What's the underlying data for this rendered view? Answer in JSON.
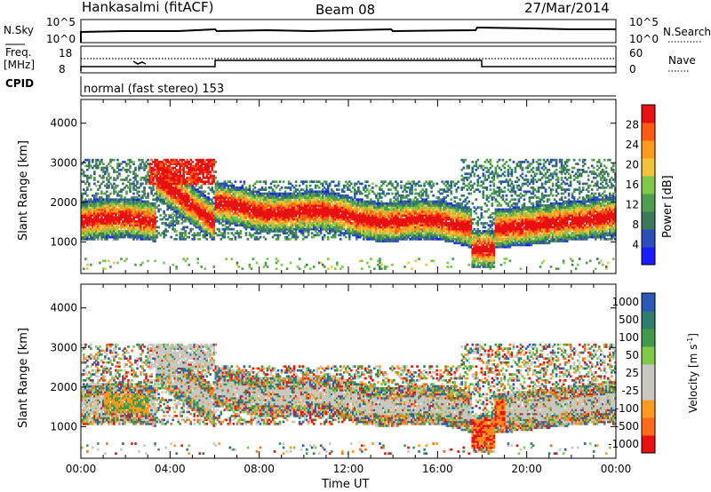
{
  "header": {
    "station": "Hankasalmi (fitACF)",
    "beam": "Beam 08",
    "date": "27/Mar/2014"
  },
  "top_panels": {
    "nsky_label": "N.Sky",
    "nsky_ticks": [
      "10^5",
      "10^0"
    ],
    "nsearch_label": "N.Search",
    "nsearch_ticks": [
      "10^5",
      "10^0"
    ],
    "freq_label_1": "Freq.",
    "freq_label_2": "[MHz]",
    "freq_ticks": [
      "18",
      "8"
    ],
    "nave_label": "Nave",
    "nave_ticks": [
      "60",
      "0"
    ],
    "cpid_label": "CPID",
    "cpid_text": "normal (fast stereo) 153"
  },
  "colors": {
    "power_scale": [
      "#1a1aff",
      "#2b4fb8",
      "#3a7a5a",
      "#4f9e4f",
      "#7ec84a",
      "#f2c23a",
      "#ff9a1f",
      "#ff5a14",
      "#e81010"
    ],
    "velocity_scale": [
      "#2a5ab8",
      "#2e7d6a",
      "#3f9a4a",
      "#7ec84a",
      "#c8c8c0",
      "#c8c8c0",
      "#ff9a1f",
      "#ff6a1a",
      "#e81010"
    ]
  },
  "chart_data": [
    {
      "type": "heatmap",
      "panel": "power",
      "ylabel": "Slant Range [km]",
      "yticks": [
        "1000",
        "2000",
        "3000",
        "4000"
      ],
      "ylim": [
        200,
        4600
      ],
      "xticks": [
        "00:00",
        "04:00",
        "08:00",
        "12:00",
        "16:00",
        "20:00",
        "00:00"
      ],
      "colorbar_label": "Power [dB]",
      "colorbar_ticks": [
        "4",
        "8",
        "12",
        "16",
        "20",
        "24",
        "28"
      ],
      "colorbar_range": [
        0,
        32
      ]
    },
    {
      "type": "heatmap",
      "panel": "velocity",
      "ylabel": "Slant Range [km]",
      "yticks": [
        "1000",
        "2000",
        "3000",
        "4000"
      ],
      "ylim": [
        200,
        4600
      ],
      "xticks": [
        "00:00",
        "04:00",
        "08:00",
        "12:00",
        "16:00",
        "20:00",
        "00:00"
      ],
      "xlabel": "Time UT",
      "colorbar_label": "Velocity [m s",
      "colorbar_label_sup": "-1",
      "colorbar_label_end": "]",
      "colorbar_ticks": [
        "1000",
        "500",
        "100",
        "50",
        "25",
        "-25",
        "-100",
        "-500",
        "-1000"
      ]
    }
  ]
}
